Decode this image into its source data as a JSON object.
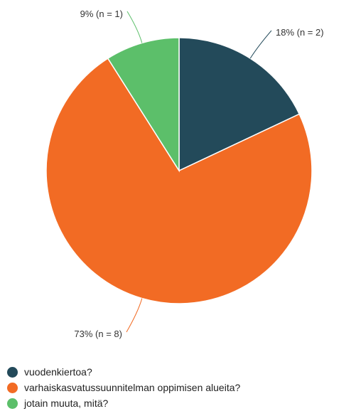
{
  "chart_data": {
    "type": "pie",
    "title": "",
    "legend_position": "bottom",
    "start_angle_deg": 0,
    "direction": "clockwise",
    "slices": [
      {
        "name": "vuodenkiertoa?",
        "percent": 18,
        "n": 2,
        "label": "18% (n = 2)",
        "color": "#234a5a"
      },
      {
        "name": "varhaiskasvatussuunnitelman oppimisen alueita?",
        "percent": 73,
        "n": 8,
        "label": "73% (n = 8)",
        "color": "#f26b24"
      },
      {
        "name": "jotain muuta, mitä?",
        "percent": 9,
        "n": 1,
        "label": "9% (n = 1)",
        "color": "#5cbf6a"
      }
    ]
  }
}
